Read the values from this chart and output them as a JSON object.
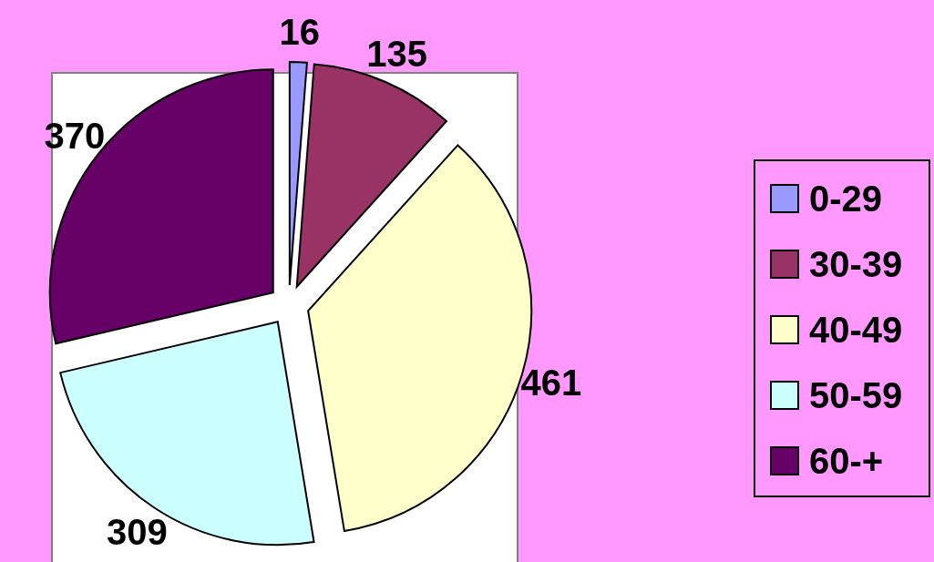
{
  "chart_data": {
    "type": "pie",
    "categories": [
      "0-29",
      "30-39",
      "40-49",
      "50-59",
      "60-+"
    ],
    "values": [
      16,
      135,
      461,
      309,
      370
    ],
    "colors": [
      "#9999ff",
      "#993366",
      "#ffffcc",
      "#ccffff",
      "#660066"
    ],
    "data_labels": true,
    "legend": "right"
  }
}
